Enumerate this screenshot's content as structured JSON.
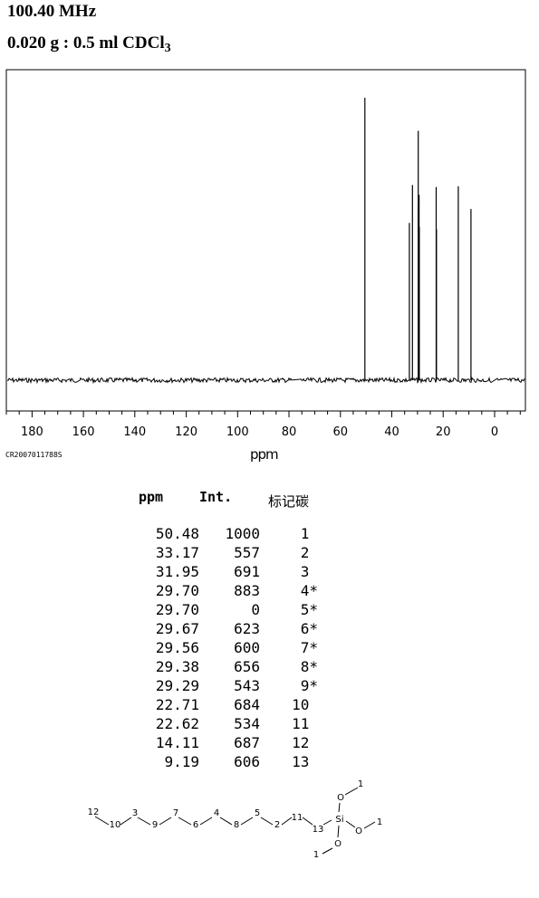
{
  "header": {
    "frequency": "100.40 MHz",
    "sample": "0.020 g : 0.5 ml CDCl",
    "sample_sub": "3"
  },
  "chart_data": {
    "type": "spectrum",
    "xlabel": "ppm",
    "xlim": [
      190,
      -12
    ],
    "x_ticks": [
      180,
      160,
      140,
      120,
      100,
      80,
      60,
      40,
      20,
      0
    ],
    "peaks": [
      {
        "ppm": 50.48,
        "int": 1000
      },
      {
        "ppm": 33.17,
        "int": 557
      },
      {
        "ppm": 31.95,
        "int": 691
      },
      {
        "ppm": 29.7,
        "int": 883
      },
      {
        "ppm": 29.67,
        "int": 623
      },
      {
        "ppm": 29.56,
        "int": 600
      },
      {
        "ppm": 29.38,
        "int": 656
      },
      {
        "ppm": 29.29,
        "int": 543
      },
      {
        "ppm": 22.71,
        "int": 684
      },
      {
        "ppm": 22.62,
        "int": 534
      },
      {
        "ppm": 14.11,
        "int": 687
      },
      {
        "ppm": 9.19,
        "int": 606
      }
    ],
    "code": "CR2007011788S"
  },
  "table": {
    "headers": [
      "ppm",
      "Int.",
      "标记碳"
    ],
    "rows": [
      [
        "50.48",
        "1000",
        "1"
      ],
      [
        "33.17",
        "557",
        "2"
      ],
      [
        "31.95",
        "691",
        "3"
      ],
      [
        "29.70",
        "883",
        "4*"
      ],
      [
        "29.70",
        "0",
        "5*"
      ],
      [
        "29.67",
        "623",
        "6*"
      ],
      [
        "29.56",
        "600",
        "7*"
      ],
      [
        "29.38",
        "656",
        "8*"
      ],
      [
        "29.29",
        "543",
        "9*"
      ],
      [
        "22.71",
        "684",
        "10"
      ],
      [
        "22.62",
        "534",
        "11"
      ],
      [
        "14.11",
        "687",
        "12"
      ],
      [
        "9.19",
        "606",
        "13"
      ]
    ]
  },
  "molecule": {
    "chain_labels": [
      "12",
      "10",
      "3",
      "9",
      "7",
      "6",
      "4",
      "8",
      "5",
      "2",
      "11",
      "13"
    ],
    "si": "Si",
    "oxygen": "O",
    "methyl": "1"
  }
}
